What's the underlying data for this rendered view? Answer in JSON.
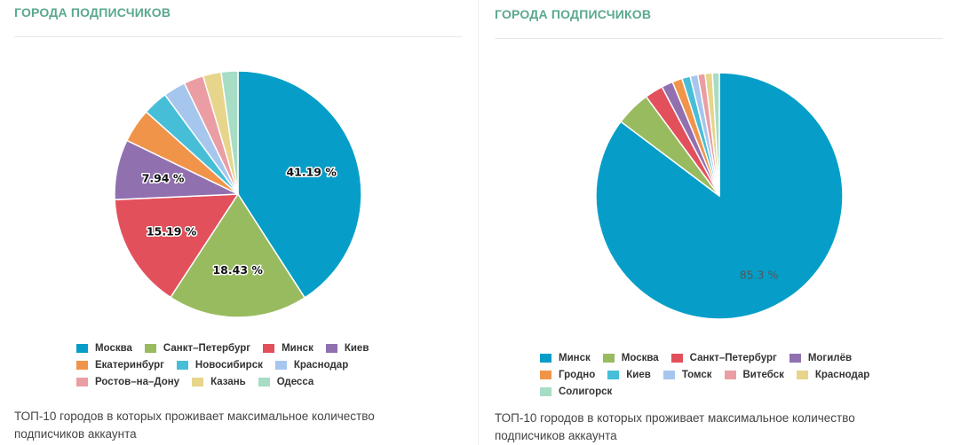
{
  "chart_data": [
    {
      "type": "pie",
      "title": "ГОРОДА ПОДПИСЧИКОВ",
      "description": "ТОП-10 городов в которых проживает максимальное количество подписчиков аккаунта",
      "slices": [
        {
          "name": "Москва",
          "value": 41.19,
          "color": "#069ec8",
          "label": "41.19 %"
        },
        {
          "name": "Санкт–Петербург",
          "value": 18.43,
          "color": "#99bb5f",
          "label": "18.43 %"
        },
        {
          "name": "Минск",
          "value": 15.19,
          "color": "#e2505c",
          "label": "15.19 %"
        },
        {
          "name": "Киев",
          "value": 7.94,
          "color": "#9170b0",
          "label": "7.94 %"
        },
        {
          "name": "Екатеринбург",
          "value": 4.5,
          "color": "#f0944a",
          "label": ""
        },
        {
          "name": "Новосибирск",
          "value": 3.3,
          "color": "#47bed8",
          "label": ""
        },
        {
          "name": "Краснодар",
          "value": 2.95,
          "color": "#a7c6ee",
          "label": ""
        },
        {
          "name": "Ростов–на–Дону",
          "value": 2.6,
          "color": "#ea9ea4",
          "label": ""
        },
        {
          "name": "Казань",
          "value": 2.4,
          "color": "#e6d58a",
          "label": ""
        },
        {
          "name": "Одесса",
          "value": 2.2,
          "color": "#a7dcc5",
          "label": ""
        }
      ],
      "legend_rows": [
        [
          0,
          1,
          2,
          3
        ],
        [
          4,
          5,
          6
        ],
        [
          7,
          8,
          9
        ]
      ]
    },
    {
      "type": "pie",
      "title": "ГОРОДА ПОДПИСЧИКОВ",
      "description": "ТОП-10 городов в которых проживает максимальное количество подписчиков аккаунта",
      "slices": [
        {
          "name": "Минск",
          "value": 85.3,
          "color": "#069ec8",
          "label": "85.3 %"
        },
        {
          "name": "Москва",
          "value": 4.6,
          "color": "#99bb5f",
          "label": ""
        },
        {
          "name": "Санкт–Петербург",
          "value": 2.4,
          "color": "#e2505c",
          "label": ""
        },
        {
          "name": "Могилёв",
          "value": 1.5,
          "color": "#9170b0",
          "label": ""
        },
        {
          "name": "Гродно",
          "value": 1.3,
          "color": "#f0944a",
          "label": ""
        },
        {
          "name": "Киев",
          "value": 1.1,
          "color": "#47bed8",
          "label": ""
        },
        {
          "name": "Томск",
          "value": 1.0,
          "color": "#a7c6ee",
          "label": ""
        },
        {
          "name": "Витебск",
          "value": 0.95,
          "color": "#ea9ea4",
          "label": ""
        },
        {
          "name": "Краснодар",
          "value": 0.95,
          "color": "#e6d58a",
          "label": ""
        },
        {
          "name": "Солигорск",
          "value": 0.9,
          "color": "#a7dcc5",
          "label": ""
        }
      ],
      "legend_rows": [
        [
          0,
          1,
          2,
          3
        ],
        [
          4,
          5,
          6,
          7,
          8
        ],
        [
          9
        ]
      ]
    }
  ]
}
